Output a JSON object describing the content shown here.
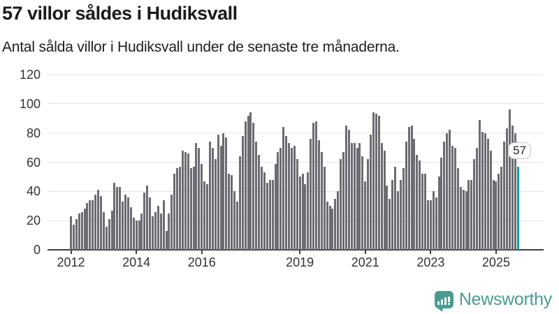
{
  "title": "57 villor såldes i Hudiksvall",
  "subtitle": "Antal sålda villor i Hudiksvall under de senaste tre månaderna.",
  "branding": {
    "logo_text": "Newsworthy",
    "logo_color": "#4a9c92",
    "logo_icon": "bar-chart-speech-bubble-icon"
  },
  "colors": {
    "bar": "#6c6c72",
    "highlight": "#0aa0a5",
    "gridline": "#e2e2e2",
    "axis": "#3d3d3d",
    "text": "#333333"
  },
  "chart_data": {
    "type": "bar",
    "title": "57 villor såldes i Hudiksvall",
    "subtitle": "Antal sålda villor i Hudiksvall under de senaste tre månaderna.",
    "x_unit": "month",
    "start_month": "2012-01",
    "end_month": "2025-09",
    "ylim": [
      0,
      120
    ],
    "y_ticks": [
      0,
      20,
      40,
      60,
      80,
      100,
      120
    ],
    "x_tick_labels": [
      "2012",
      "2014",
      "2016",
      "2019",
      "2021",
      "2023",
      "2025"
    ],
    "grid": "horizontal",
    "legend": "none",
    "highlight_last": true,
    "last_value_label": "57",
    "values": [
      23,
      17,
      21,
      25,
      26,
      28,
      32,
      34,
      34,
      38,
      41,
      37,
      26,
      16,
      21,
      27,
      46,
      43,
      43,
      33,
      38,
      36,
      29,
      22,
      20,
      20,
      25,
      39,
      44,
      36,
      23,
      26,
      30,
      25,
      34,
      13,
      25,
      38,
      52,
      56,
      57,
      68,
      67,
      66,
      56,
      57,
      73,
      70,
      59,
      47,
      45,
      74,
      70,
      62,
      79,
      71,
      80,
      77,
      52,
      51,
      40,
      33,
      64,
      78,
      88,
      92,
      94,
      87,
      74,
      65,
      57,
      53,
      46,
      48,
      48,
      59,
      67,
      70,
      84,
      78,
      73,
      70,
      71,
      62,
      50,
      52,
      45,
      53,
      76,
      87,
      88,
      75,
      67,
      57,
      33,
      30,
      28,
      35,
      40,
      62,
      67,
      85,
      82,
      73,
      73,
      70,
      73,
      64,
      47,
      62,
      79,
      94,
      93,
      92,
      73,
      68,
      44,
      35,
      48,
      57,
      40,
      48,
      56,
      74,
      84,
      85,
      76,
      65,
      61,
      52,
      52,
      34,
      34,
      40,
      36,
      50,
      63,
      74,
      80,
      82,
      71,
      70,
      56,
      43,
      41,
      40,
      48,
      48,
      62,
      70,
      89,
      81,
      80,
      76,
      68,
      48,
      47,
      52,
      57,
      74,
      83,
      96,
      85,
      80,
      57
    ]
  }
}
